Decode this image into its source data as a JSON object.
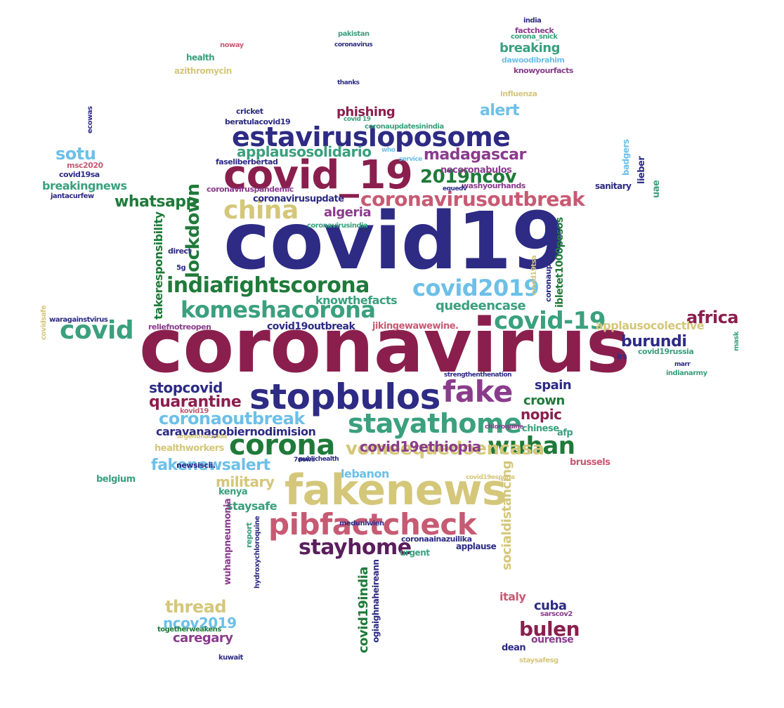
{
  "colors": {
    "navy": "#2d2b84",
    "maroon": "#8a1f4e",
    "green": "#1f7a3a",
    "teal": "#3aa07e",
    "light_blue": "#6cc0e8",
    "khaki": "#d4c77a",
    "pink": "#c75a73",
    "purple": "#8a3c8c",
    "dark_purple": "#5a1e5c",
    "brown": "#a0622a"
  },
  "words": [
    {
      "text": "covid19",
      "color": "navy"
    },
    {
      "text": "coronavirus",
      "color": "maroon"
    },
    {
      "text": "covid_19",
      "color": "maroon"
    },
    {
      "text": "estavirusloposome",
      "color": "navy"
    },
    {
      "text": "stopbulos",
      "color": "navy"
    },
    {
      "text": "fakenews",
      "color": "khaki"
    },
    {
      "text": "pibfactcheck",
      "color": "pink"
    },
    {
      "text": "komeshacorona",
      "color": "teal"
    },
    {
      "text": "coronavirusoutbreak",
      "color": "pink"
    },
    {
      "text": "china",
      "color": "khaki"
    },
    {
      "text": "covid",
      "color": "teal"
    },
    {
      "text": "corona",
      "color": "green"
    },
    {
      "text": "wuhan",
      "color": "green"
    },
    {
      "text": "stayathome",
      "color": "teal"
    },
    {
      "text": "fake",
      "color": "purple"
    },
    {
      "text": "stayhome",
      "color": "dark_purple"
    },
    {
      "text": "indiafightscorona",
      "color": "green"
    },
    {
      "text": "covid2019",
      "color": "light_blue"
    },
    {
      "text": "covid-19",
      "color": "teal"
    },
    {
      "text": "lockdown",
      "color": "green"
    },
    {
      "text": "2019ncov",
      "color": "green"
    },
    {
      "text": "madagascar",
      "color": "purple"
    },
    {
      "text": "applausosolidario",
      "color": "teal"
    },
    {
      "text": "sotu",
      "color": "light_blue"
    },
    {
      "text": "whatsapp",
      "color": "green"
    },
    {
      "text": "algeria",
      "color": "purple"
    },
    {
      "text": "coronaoutbreak",
      "color": "light_blue"
    },
    {
      "text": "vomeequedoencasa",
      "color": "khaki"
    },
    {
      "text": "fakenewsalert",
      "color": "light_blue"
    },
    {
      "text": "covid19ethiopia",
      "color": "purple"
    },
    {
      "text": "quarantine",
      "color": "maroon"
    },
    {
      "text": "stopcovid",
      "color": "navy"
    },
    {
      "text": "burundi",
      "color": "navy"
    },
    {
      "text": "africa",
      "color": "maroon"
    },
    {
      "text": "bulen",
      "color": "maroon"
    },
    {
      "text": "thread",
      "color": "khaki"
    },
    {
      "text": "ncov2019",
      "color": "light_blue"
    },
    {
      "text": "military",
      "color": "khaki"
    },
    {
      "text": "alert",
      "color": "light_blue"
    },
    {
      "text": "phishing",
      "color": "maroon"
    },
    {
      "text": "breaking",
      "color": "teal"
    },
    {
      "text": "nopic",
      "color": "maroon"
    },
    {
      "text": "crown",
      "color": "green"
    },
    {
      "text": "spain",
      "color": "navy"
    },
    {
      "text": "quedeencase",
      "color": "teal"
    },
    {
      "text": "knowthefacts",
      "color": "teal"
    },
    {
      "text": "takeresponsibility",
      "color": "green"
    },
    {
      "text": "covid19india",
      "color": "green"
    },
    {
      "text": "socialdistancing",
      "color": "khaki"
    },
    {
      "text": "applausocolective",
      "color": "khaki"
    },
    {
      "text": "cuba",
      "color": "navy"
    },
    {
      "text": "caregary",
      "color": "purple"
    },
    {
      "text": "breakingnews",
      "color": "teal"
    },
    {
      "text": "italy",
      "color": "pink"
    },
    {
      "text": "ourense",
      "color": "purple"
    },
    {
      "text": "dean",
      "color": "navy"
    },
    {
      "text": "staysafe",
      "color": "teal"
    },
    {
      "text": "lebanon",
      "color": "light_blue"
    },
    {
      "text": "kenya",
      "color": "teal"
    },
    {
      "text": "belgium",
      "color": "teal"
    },
    {
      "text": "chinese",
      "color": "teal"
    },
    {
      "text": "afp",
      "color": "teal"
    },
    {
      "text": "brussels",
      "color": "pink"
    },
    {
      "text": "healthworkers",
      "color": "khaki"
    },
    {
      "text": "caravanagobiernodimision",
      "color": "navy"
    },
    {
      "text": "covid19outbreak",
      "color": "navy"
    },
    {
      "text": "reliefnotreopen",
      "color": "purple"
    },
    {
      "text": "jikingewawewine.",
      "color": "pink"
    },
    {
      "text": "coronavirusupdate",
      "color": "navy"
    },
    {
      "text": "coronaviruspandemic",
      "color": "purple"
    },
    {
      "text": "faseliberbertad",
      "color": "navy"
    },
    {
      "text": "nocoronabulos",
      "color": "purple"
    },
    {
      "text": "washyourhands",
      "color": "purple"
    },
    {
      "text": "sanitary",
      "color": "navy"
    },
    {
      "text": "waragainstvirus",
      "color": "navy"
    },
    {
      "text": "covidsafe",
      "color": "khaki"
    },
    {
      "text": "msc2020",
      "color": "pink"
    },
    {
      "text": "covid19sa",
      "color": "navy"
    },
    {
      "text": "jantacurfew",
      "color": "navy"
    },
    {
      "text": "ecowas",
      "color": "navy"
    },
    {
      "text": "health",
      "color": "teal"
    },
    {
      "text": "azithromycin",
      "color": "khaki"
    },
    {
      "text": "noway",
      "color": "pink"
    },
    {
      "text": "pakistan",
      "color": "teal"
    },
    {
      "text": "coronavirus",
      "color": "navy"
    },
    {
      "text": "cricket",
      "color": "navy"
    },
    {
      "text": "beratulacovid19",
      "color": "navy"
    },
    {
      "text": "coronaupdatesinindia",
      "color": "teal"
    },
    {
      "text": "india",
      "color": "navy"
    },
    {
      "text": "factcheck",
      "color": "purple"
    },
    {
      "text": "corona_snick",
      "color": "teal"
    },
    {
      "text": "dawoodibrahim",
      "color": "light_blue"
    },
    {
      "text": "knowyourfacts",
      "color": "purple"
    },
    {
      "text": "influenza",
      "color": "khaki"
    },
    {
      "text": "badgers",
      "color": "light_blue"
    },
    {
      "text": "lieber",
      "color": "navy"
    },
    {
      "text": "uae",
      "color": "teal"
    },
    {
      "text": "covid19tsa",
      "color": "khaki"
    },
    {
      "text": "coronaupdatesindia",
      "color": "navy"
    },
    {
      "text": "ibletet1000pesos",
      "color": "green"
    },
    {
      "text": "irs",
      "color": "navy"
    },
    {
      "text": "covid19russia",
      "color": "teal"
    },
    {
      "text": "marr",
      "color": "navy"
    },
    {
      "text": "indianarmy",
      "color": "teal"
    },
    {
      "text": "mask",
      "color": "teal"
    },
    {
      "text": "sarscov2",
      "color": "purple"
    },
    {
      "text": "togetherweakens",
      "color": "green"
    },
    {
      "text": "kuwait",
      "color": "navy"
    },
    {
      "text": "staysafesg",
      "color": "khaki"
    },
    {
      "text": "applause",
      "color": "navy"
    },
    {
      "text": "urgent",
      "color": "teal"
    },
    {
      "text": "coronaainazuilika",
      "color": "navy"
    },
    {
      "text": "meduniwien",
      "color": "navy"
    },
    {
      "text": "ogiaighnaheireann",
      "color": "navy"
    },
    {
      "text": "wuhanpneumonia",
      "color": "purple"
    },
    {
      "text": "report",
      "color": "teal"
    },
    {
      "text": "hydroxychloroquine",
      "color": "navy"
    },
    {
      "text": "direct",
      "color": "navy"
    },
    {
      "text": "5g",
      "color": "navy"
    },
    {
      "text": "strengthenthenation",
      "color": "navy"
    },
    {
      "text": "chloroquine",
      "color": "purple"
    },
    {
      "text": "publichealth",
      "color": "navy"
    },
    {
      "text": "newsiscii.",
      "color": "navy"
    },
    {
      "text": "covid19espana",
      "color": "khaki"
    },
    {
      "text": "coronavirusindia",
      "color": "teal"
    },
    {
      "text": "equedv",
      "color": "navy"
    },
    {
      "text": "thanks",
      "color": "navy"
    },
    {
      "text": "who",
      "color": "light_blue"
    },
    {
      "text": "kovid19",
      "color": "pink"
    },
    {
      "text": "7news",
      "color": "navy"
    },
    {
      "text": "argentinaunida",
      "color": "khaki"
    },
    {
      "text": "covid 19",
      "color": "teal"
    },
    {
      "text": "service",
      "color": "light_blue"
    }
  ]
}
